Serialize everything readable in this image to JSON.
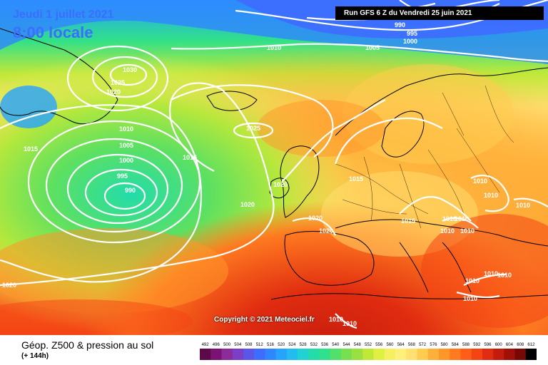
{
  "header": {
    "date": "Jeudi 1 juillet 2021",
    "local_time": "8:00 locale",
    "run": "Run GFS 6 Z du Vendredi 25 juin 2021"
  },
  "copyright": "Copyright © 2021 Meteociel.fr",
  "footer": {
    "product": "Géop. Z500 & pression au sol",
    "lead_time": "(+ 144h)"
  },
  "color_scale": {
    "values": [
      "492",
      "496",
      "500",
      "504",
      "508",
      "512",
      "516",
      "520",
      "524",
      "528",
      "532",
      "536",
      "540",
      "544",
      "548",
      "552",
      "556",
      "560",
      "564",
      "568",
      "572",
      "576",
      "580",
      "584",
      "588",
      "592",
      "596",
      "600",
      "604",
      "608",
      "612"
    ],
    "colors": [
      "#5b0a4a",
      "#7a1372",
      "#8e2b9b",
      "#7a3fc4",
      "#5b55e8",
      "#3f6bff",
      "#2f86ff",
      "#26a2ff",
      "#22bdf0",
      "#20d2d2",
      "#22dcaa",
      "#30e08a",
      "#52e06a",
      "#76e050",
      "#9ae040",
      "#c0e838",
      "#e0f040",
      "#f4f060",
      "#fff07a",
      "#ffe070",
      "#ffcc50",
      "#ffb03a",
      "#ff962a",
      "#ff7a20",
      "#ff5e18",
      "#f44414",
      "#e02c10",
      "#c41c0c",
      "#a01008",
      "#780806",
      "#000000"
    ]
  },
  "isobars": [
    {
      "value": "1030",
      "kind": "high"
    },
    {
      "value": "1025",
      "kind": "high"
    },
    {
      "value": "1020",
      "kind": "high"
    },
    {
      "value": "1010",
      "kind": "low"
    },
    {
      "value": "1005",
      "kind": "low"
    },
    {
      "value": "1000",
      "kind": "low"
    },
    {
      "value": "995",
      "kind": "low"
    },
    {
      "value": "990",
      "kind": "low"
    },
    {
      "value": "1015",
      "kind": "mid"
    },
    {
      "value": "1025",
      "kind": "azores"
    },
    {
      "value": "1020",
      "kind": "azores"
    },
    {
      "value": "1010",
      "kind": "north"
    },
    {
      "value": "1005",
      "kind": "north"
    },
    {
      "value": "990",
      "kind": "north"
    },
    {
      "value": "995",
      "kind": "north"
    },
    {
      "value": "1000",
      "kind": "north"
    },
    {
      "value": "1015",
      "kind": "europe"
    },
    {
      "value": "1010",
      "kind": "europe"
    },
    {
      "value": "1020",
      "kind": "west"
    },
    {
      "value": "1015",
      "kind": "west"
    }
  ]
}
